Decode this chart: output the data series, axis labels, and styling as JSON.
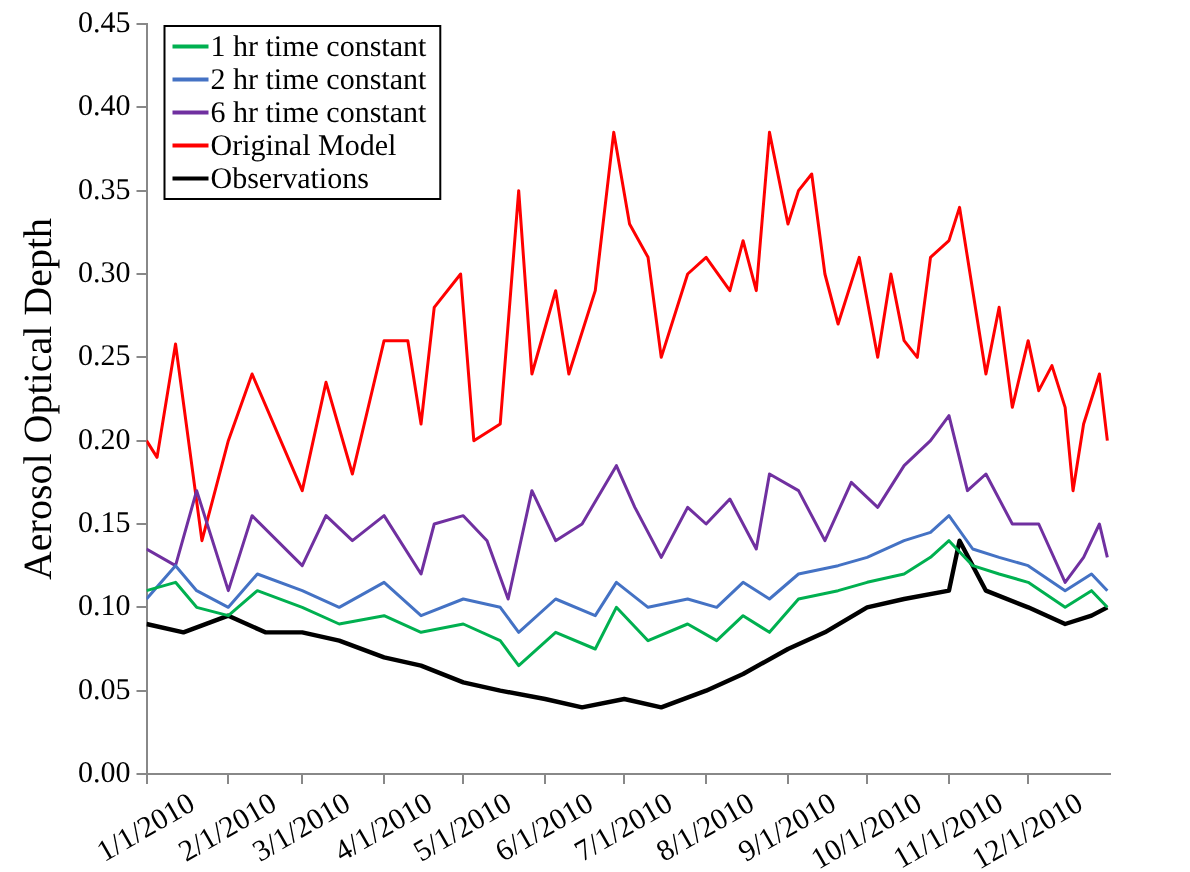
{
  "chart_data": {
    "type": "line",
    "ylabel": "Aerosol Optical Depth",
    "legend": "top left",
    "grid": false,
    "marker": "none",
    "line_style": "solid",
    "xlim": [
      "2010-01-01",
      "2011-01-01"
    ],
    "xticks": [
      {
        "value": "2010-01-01",
        "label": "1/1/2010"
      },
      {
        "value": "2010-02-01",
        "label": "2/1/2010"
      },
      {
        "value": "2010-03-01",
        "label": "3/1/2010"
      },
      {
        "value": "2010-04-01",
        "label": "4/1/2010"
      },
      {
        "value": "2010-05-01",
        "label": "5/1/2010"
      },
      {
        "value": "2010-06-01",
        "label": "6/1/2010"
      },
      {
        "value": "2010-07-01",
        "label": "7/1/2010"
      },
      {
        "value": "2010-08-01",
        "label": "8/1/2010"
      },
      {
        "value": "2010-09-01",
        "label": "9/1/2010"
      },
      {
        "value": "2010-10-01",
        "label": "10/1/2010"
      },
      {
        "value": "2010-11-01",
        "label": "11/1/2010"
      },
      {
        "value": "2010-12-01",
        "label": "12/1/2010"
      }
    ],
    "ylim": [
      0,
      0.45
    ],
    "yticks": [
      {
        "value": 0,
        "label": "0.00"
      },
      {
        "value": 0.05,
        "label": "0.05"
      },
      {
        "value": 0.1,
        "label": "0.10"
      },
      {
        "value": 0.15,
        "label": "0.15"
      },
      {
        "value": 0.2,
        "label": "0.20"
      },
      {
        "value": 0.25,
        "label": "0.25"
      },
      {
        "value": 0.3,
        "label": "0.30"
      },
      {
        "value": 0.35,
        "label": "0.35"
      },
      {
        "value": 0.4,
        "label": "0.40"
      },
      {
        "value": 0.45,
        "label": "0.45"
      }
    ],
    "series": [
      {
        "name": "1 hr time constant",
        "color": "#00b050",
        "x": [
          "2010-01-01",
          "2010-01-12",
          "2010-01-20",
          "2010-02-01",
          "2010-02-12",
          "2010-03-01",
          "2010-03-15",
          "2010-04-01",
          "2010-04-15",
          "2010-05-01",
          "2010-05-15",
          "2010-05-22",
          "2010-06-05",
          "2010-06-20",
          "2010-06-28",
          "2010-07-10",
          "2010-07-25",
          "2010-08-05",
          "2010-08-15",
          "2010-08-25",
          "2010-09-05",
          "2010-09-20",
          "2010-10-01",
          "2010-10-15",
          "2010-10-25",
          "2010-11-01",
          "2010-11-10",
          "2010-11-20",
          "2010-12-01",
          "2010-12-15",
          "2010-12-25",
          "2010-12-31"
        ],
        "values": [
          0.11,
          0.115,
          0.1,
          0.095,
          0.11,
          0.1,
          0.09,
          0.095,
          0.085,
          0.09,
          0.08,
          0.065,
          0.085,
          0.075,
          0.1,
          0.08,
          0.09,
          0.08,
          0.095,
          0.085,
          0.105,
          0.11,
          0.115,
          0.12,
          0.13,
          0.14,
          0.125,
          0.12,
          0.115,
          0.1,
          0.11,
          0.1
        ]
      },
      {
        "name": "2 hr time constant",
        "color": "#4472c4",
        "x": [
          "2010-01-01",
          "2010-01-12",
          "2010-01-20",
          "2010-02-01",
          "2010-02-12",
          "2010-03-01",
          "2010-03-15",
          "2010-04-01",
          "2010-04-15",
          "2010-05-01",
          "2010-05-15",
          "2010-05-22",
          "2010-06-05",
          "2010-06-20",
          "2010-06-28",
          "2010-07-10",
          "2010-07-25",
          "2010-08-05",
          "2010-08-15",
          "2010-08-25",
          "2010-09-05",
          "2010-09-20",
          "2010-10-01",
          "2010-10-15",
          "2010-10-25",
          "2010-11-01",
          "2010-11-10",
          "2010-11-20",
          "2010-12-01",
          "2010-12-15",
          "2010-12-25",
          "2010-12-31"
        ],
        "values": [
          0.105,
          0.125,
          0.11,
          0.1,
          0.12,
          0.11,
          0.1,
          0.115,
          0.095,
          0.105,
          0.1,
          0.085,
          0.105,
          0.095,
          0.115,
          0.1,
          0.105,
          0.1,
          0.115,
          0.105,
          0.12,
          0.125,
          0.13,
          0.14,
          0.145,
          0.155,
          0.135,
          0.13,
          0.125,
          0.11,
          0.12,
          0.11
        ]
      },
      {
        "name": "6 hr time constant",
        "color": "#7030a0",
        "x": [
          "2010-01-01",
          "2010-01-12",
          "2010-01-20",
          "2010-02-01",
          "2010-02-10",
          "2010-03-01",
          "2010-03-10",
          "2010-03-20",
          "2010-04-01",
          "2010-04-15",
          "2010-04-20",
          "2010-05-01",
          "2010-05-10",
          "2010-05-18",
          "2010-05-27",
          "2010-06-05",
          "2010-06-15",
          "2010-06-28",
          "2010-07-05",
          "2010-07-15",
          "2010-07-25",
          "2010-08-01",
          "2010-08-10",
          "2010-08-20",
          "2010-08-25",
          "2010-09-05",
          "2010-09-15",
          "2010-09-25",
          "2010-10-05",
          "2010-10-15",
          "2010-10-25",
          "2010-11-01",
          "2010-11-08",
          "2010-11-15",
          "2010-11-25",
          "2010-12-05",
          "2010-12-15",
          "2010-12-22",
          "2010-12-28",
          "2010-12-31"
        ],
        "values": [
          0.135,
          0.125,
          0.17,
          0.11,
          0.155,
          0.125,
          0.155,
          0.14,
          0.155,
          0.12,
          0.15,
          0.155,
          0.14,
          0.105,
          0.17,
          0.14,
          0.15,
          0.185,
          0.16,
          0.13,
          0.16,
          0.15,
          0.165,
          0.135,
          0.18,
          0.17,
          0.14,
          0.175,
          0.16,
          0.185,
          0.2,
          0.215,
          0.17,
          0.18,
          0.15,
          0.15,
          0.115,
          0.13,
          0.15,
          0.13
        ]
      },
      {
        "name": "Original Model",
        "color": "#ff0000",
        "x": [
          "2010-01-01",
          "2010-01-05",
          "2010-01-12",
          "2010-01-22",
          "2010-02-01",
          "2010-02-10",
          "2010-03-01",
          "2010-03-10",
          "2010-03-20",
          "2010-04-01",
          "2010-04-10",
          "2010-04-15",
          "2010-04-20",
          "2010-04-30",
          "2010-05-05",
          "2010-05-15",
          "2010-05-22",
          "2010-05-27",
          "2010-06-05",
          "2010-06-10",
          "2010-06-20",
          "2010-06-27",
          "2010-07-03",
          "2010-07-10",
          "2010-07-15",
          "2010-07-25",
          "2010-08-01",
          "2010-08-10",
          "2010-08-15",
          "2010-08-20",
          "2010-08-25",
          "2010-09-01",
          "2010-09-05",
          "2010-09-10",
          "2010-09-15",
          "2010-09-20",
          "2010-09-28",
          "2010-10-05",
          "2010-10-10",
          "2010-10-15",
          "2010-10-20",
          "2010-10-25",
          "2010-11-01",
          "2010-11-05",
          "2010-11-10",
          "2010-11-15",
          "2010-11-20",
          "2010-11-25",
          "2010-12-01",
          "2010-12-05",
          "2010-12-10",
          "2010-12-15",
          "2010-12-18",
          "2010-12-22",
          "2010-12-28",
          "2010-12-31"
        ],
        "values": [
          0.2,
          0.19,
          0.258,
          0.14,
          0.2,
          0.24,
          0.17,
          0.235,
          0.18,
          0.26,
          0.26,
          0.21,
          0.28,
          0.3,
          0.2,
          0.21,
          0.35,
          0.24,
          0.29,
          0.24,
          0.29,
          0.385,
          0.33,
          0.31,
          0.25,
          0.3,
          0.31,
          0.29,
          0.32,
          0.29,
          0.385,
          0.33,
          0.35,
          0.36,
          0.3,
          0.27,
          0.31,
          0.25,
          0.3,
          0.26,
          0.25,
          0.31,
          0.32,
          0.34,
          0.29,
          0.24,
          0.28,
          0.22,
          0.26,
          0.23,
          0.245,
          0.22,
          0.17,
          0.21,
          0.24,
          0.2
        ]
      },
      {
        "name": "Observations",
        "color": "#000000",
        "x": [
          "2010-01-01",
          "2010-01-15",
          "2010-02-01",
          "2010-02-15",
          "2010-03-01",
          "2010-03-15",
          "2010-04-01",
          "2010-04-15",
          "2010-05-01",
          "2010-05-15",
          "2010-06-01",
          "2010-06-15",
          "2010-07-01",
          "2010-07-15",
          "2010-08-01",
          "2010-08-15",
          "2010-09-01",
          "2010-09-15",
          "2010-10-01",
          "2010-10-15",
          "2010-11-01",
          "2010-11-05",
          "2010-11-15",
          "2010-12-01",
          "2010-12-15",
          "2010-12-25",
          "2010-12-31"
        ],
        "values": [
          0.09,
          0.085,
          0.095,
          0.085,
          0.085,
          0.08,
          0.07,
          0.065,
          0.055,
          0.05,
          0.045,
          0.04,
          0.045,
          0.04,
          0.05,
          0.06,
          0.075,
          0.085,
          0.1,
          0.105,
          0.11,
          0.14,
          0.11,
          0.1,
          0.09,
          0.095,
          0.1
        ]
      }
    ]
  }
}
